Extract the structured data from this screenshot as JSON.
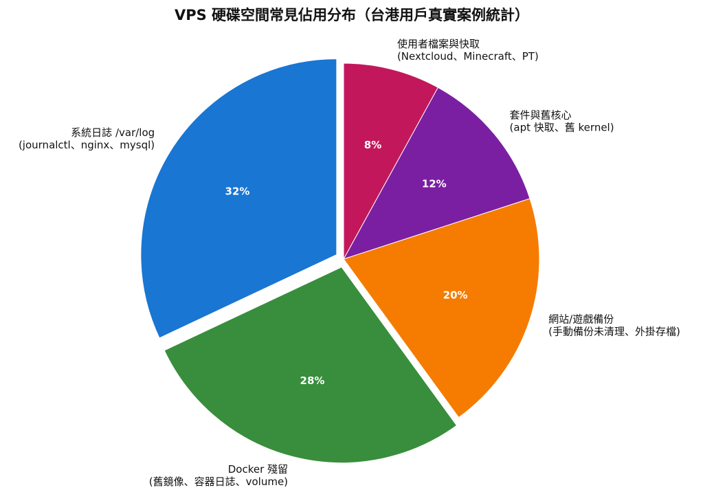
{
  "chart_data": {
    "type": "pie",
    "title": "VPS 硬碟空間常見佔用分布（台港用戶真實案例統計）",
    "categories": [
      "系統日誌 /var/log",
      "Docker 殘留",
      "網站/遊戲備份",
      "套件與舊核心",
      "使用者檔案與快取"
    ],
    "category_details": [
      "(journalctl、nginx、mysql)",
      "(舊鏡像、容器日誌、volume)",
      "(手動備份未清理、外掛存檔)",
      "(apt 快取、舊 kernel)",
      "(Nextcloud、Minecraft、PT)"
    ],
    "values": [
      32,
      28,
      20,
      12,
      8
    ],
    "value_labels": [
      "32%",
      "28%",
      "20%",
      "12%",
      "8%"
    ],
    "colors": [
      "#1976d2",
      "#388e3c",
      "#f57c00",
      "#7b1fa2",
      "#c2185b"
    ],
    "explode": [
      true,
      true,
      false,
      false,
      false
    ]
  }
}
